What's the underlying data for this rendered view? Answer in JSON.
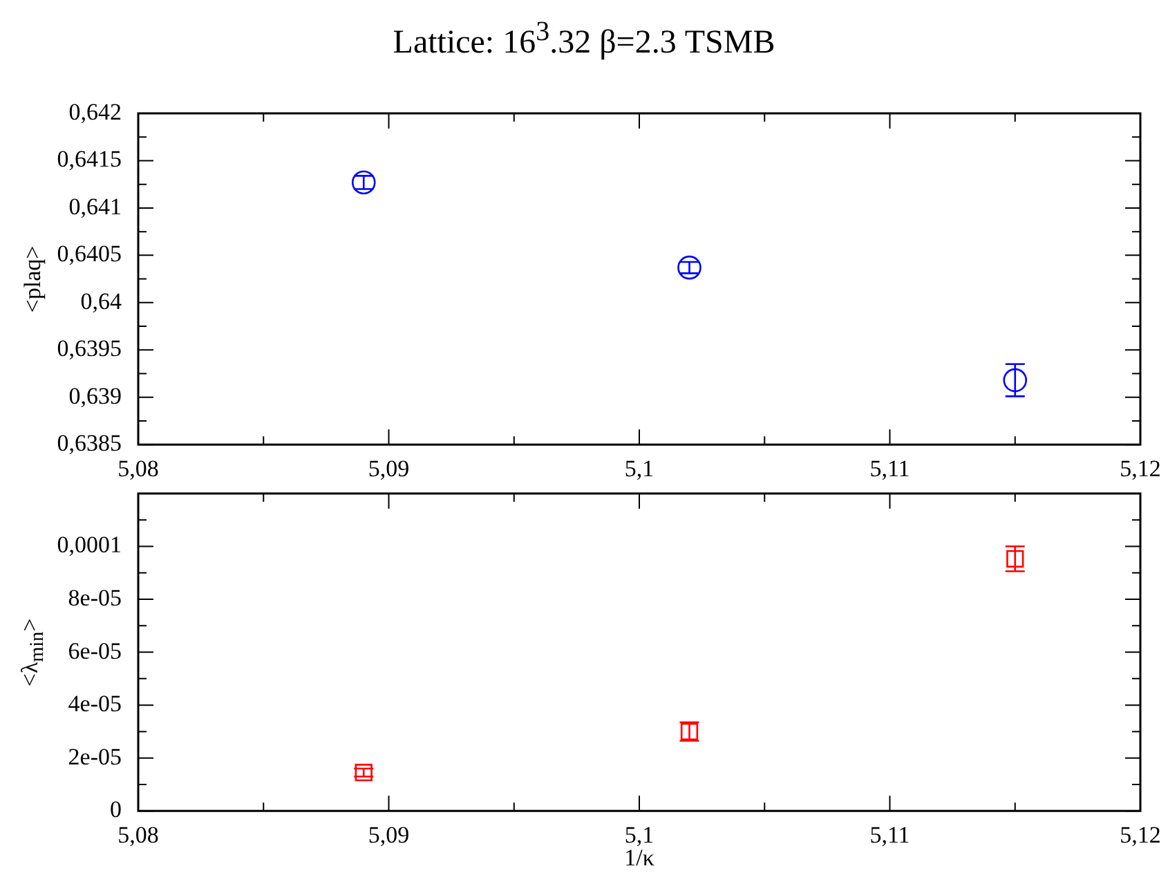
{
  "chart_data": [
    {
      "type": "scatter",
      "title": "Lattice: 16$^{3}$.32 β=2.3 TSMB",
      "ylabel": "<plaq>",
      "marker": "circle",
      "grid": false,
      "legend": false,
      "x": [
        5.089,
        5.102,
        5.115
      ],
      "series": [
        {
          "color": "#0000ff",
          "values": [
            0.64127,
            0.64037,
            0.63918
          ],
          "errors": [
            7e-05,
            6e-05,
            0.00017
          ]
        }
      ],
      "xlim": [
        5.08,
        5.12
      ],
      "xticks": [
        {
          "value": 5.08,
          "label": "5,08"
        },
        {
          "value": 5.085,
          "label": null
        },
        {
          "value": 5.09,
          "label": "5,09"
        },
        {
          "value": 5.095,
          "label": null
        },
        {
          "value": 5.1,
          "label": "5,1"
        },
        {
          "value": 5.105,
          "label": null
        },
        {
          "value": 5.11,
          "label": "5,11"
        },
        {
          "value": 5.115,
          "label": null
        },
        {
          "value": 5.12,
          "label": "5,12"
        }
      ],
      "ylim": [
        0.6385,
        0.642
      ],
      "yticks": [
        {
          "value": 0.6385,
          "label": "0,6385"
        },
        {
          "value": 0.63875,
          "label": null
        },
        {
          "value": 0.639,
          "label": "0,639"
        },
        {
          "value": 0.63925,
          "label": null
        },
        {
          "value": 0.6395,
          "label": "0,6395"
        },
        {
          "value": 0.63975,
          "label": null
        },
        {
          "value": 0.64,
          "label": "0,64"
        },
        {
          "value": 0.64025,
          "label": null
        },
        {
          "value": 0.6405,
          "label": "0,6405"
        },
        {
          "value": 0.64075,
          "label": null
        },
        {
          "value": 0.641,
          "label": "0,641"
        },
        {
          "value": 0.64125,
          "label": null
        },
        {
          "value": 0.6415,
          "label": "0,6415"
        },
        {
          "value": 0.64175,
          "label": null
        },
        {
          "value": 0.642,
          "label": "0,642"
        }
      ]
    },
    {
      "type": "scatter",
      "xlabel": "1/κ",
      "ylabel": "<λ$_{min}$>",
      "marker": "square",
      "grid": false,
      "legend": false,
      "x": [
        5.089,
        5.102,
        5.115
      ],
      "series": [
        {
          "color": "#ff0000",
          "values": [
            1.45e-05,
            3e-05,
            9.53e-05
          ],
          "errors": [
            1.5e-06,
            3.5e-06,
            4.7e-06
          ]
        }
      ],
      "xlim": [
        5.08,
        5.12
      ],
      "xticks": [
        {
          "value": 5.08,
          "label": "5,08"
        },
        {
          "value": 5.085,
          "label": null
        },
        {
          "value": 5.09,
          "label": "5,09"
        },
        {
          "value": 5.095,
          "label": null
        },
        {
          "value": 5.1,
          "label": "5,1"
        },
        {
          "value": 5.105,
          "label": null
        },
        {
          "value": 5.11,
          "label": "5,11"
        },
        {
          "value": 5.115,
          "label": null
        },
        {
          "value": 5.12,
          "label": "5,12"
        }
      ],
      "ylim": [
        0,
        0.00012
      ],
      "yticks": [
        0,
        {
          "value": 1e-05,
          "label": null
        },
        {
          "value": 2e-05,
          "label": "2e-05"
        },
        {
          "value": 3e-05,
          "label": null
        },
        {
          "value": 4e-05,
          "label": "4e-05"
        },
        {
          "value": 5e-05,
          "label": null
        },
        {
          "value": 6e-05,
          "label": "6e-05"
        },
        {
          "value": 7e-05,
          "label": null
        },
        {
          "value": 8e-05,
          "label": "8e-05"
        },
        {
          "value": 9e-05,
          "label": null
        },
        {
          "value": 0.0001,
          "label": "0,0001"
        },
        {
          "value": 0.00011,
          "label": null
        }
      ]
    }
  ]
}
